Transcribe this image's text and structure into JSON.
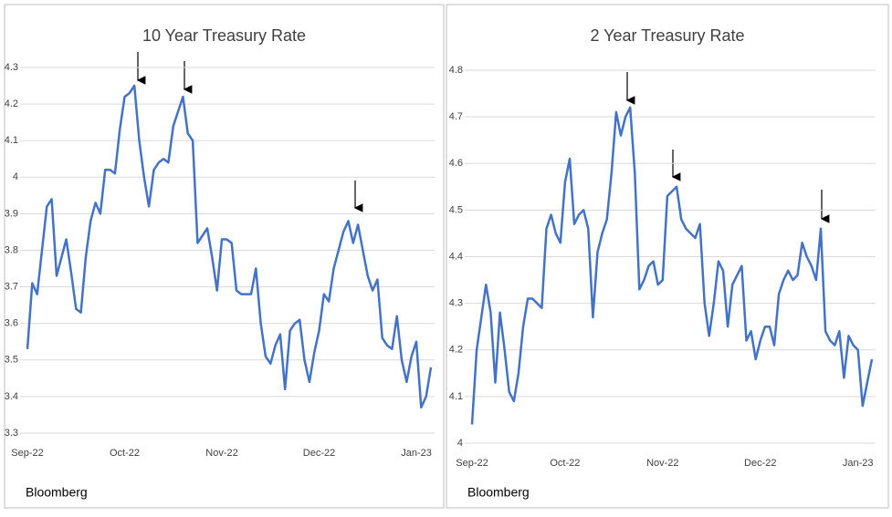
{
  "chart_data": [
    {
      "type": "line",
      "title": "10 Year Treasury Rate",
      "source": "Bloomberg",
      "color": "#4472c4",
      "grid": true,
      "ylim": [
        3.3,
        4.3
      ],
      "yticks": [
        3.3,
        3.4,
        3.5,
        3.6,
        3.7,
        3.8,
        3.9,
        4,
        4.1,
        4.2,
        4.3
      ],
      "categories": [
        "Sep-22",
        null,
        null,
        null,
        null,
        null,
        null,
        null,
        null,
        null,
        null,
        null,
        null,
        null,
        null,
        null,
        null,
        null,
        null,
        null,
        "Oct-22",
        null,
        null,
        null,
        null,
        null,
        null,
        null,
        null,
        null,
        null,
        null,
        null,
        null,
        null,
        null,
        null,
        null,
        null,
        null,
        "Nov-22",
        null,
        null,
        null,
        null,
        null,
        null,
        null,
        null,
        null,
        null,
        null,
        null,
        null,
        null,
        null,
        null,
        null,
        null,
        null,
        "Dec-22",
        null,
        null,
        null,
        null,
        null,
        null,
        null,
        null,
        null,
        null,
        null,
        null,
        null,
        null,
        null,
        null,
        null,
        null,
        null,
        "Jan-23",
        null,
        null,
        null
      ],
      "values": [
        3.53,
        3.71,
        3.68,
        3.8,
        3.92,
        3.94,
        3.73,
        3.78,
        3.83,
        3.74,
        3.64,
        3.63,
        3.78,
        3.88,
        3.93,
        3.9,
        4.02,
        4.02,
        4.01,
        4.13,
        4.22,
        4.23,
        4.25,
        4.1,
        4.0,
        3.92,
        4.02,
        4.04,
        4.05,
        4.04,
        4.14,
        4.18,
        4.22,
        4.12,
        4.1,
        3.82,
        3.84,
        3.86,
        3.78,
        3.69,
        3.83,
        3.83,
        3.82,
        3.69,
        3.68,
        3.68,
        3.68,
        3.75,
        3.6,
        3.51,
        3.49,
        3.54,
        3.57,
        3.42,
        3.58,
        3.6,
        3.61,
        3.5,
        3.44,
        3.52,
        3.58,
        3.68,
        3.66,
        3.75,
        3.8,
        3.85,
        3.88,
        3.82,
        3.87,
        3.8,
        3.73,
        3.69,
        3.72,
        3.56,
        3.54,
        3.53,
        3.62,
        3.5,
        3.44,
        3.51,
        3.55,
        3.37,
        3.4,
        3.48
      ]
    },
    {
      "type": "line",
      "title": "2 Year Treasury Rate",
      "source": "Bloomberg",
      "color": "#4472c4",
      "grid": true,
      "ylim": [
        4,
        4.8
      ],
      "yticks": [
        4,
        4.1,
        4.2,
        4.3,
        4.4,
        4.5,
        4.6,
        4.7,
        4.8
      ],
      "categories": [
        "Sep-22",
        null,
        null,
        null,
        null,
        null,
        null,
        null,
        null,
        null,
        null,
        null,
        null,
        null,
        null,
        null,
        null,
        null,
        null,
        null,
        "Oct-22",
        null,
        null,
        null,
        null,
        null,
        null,
        null,
        null,
        null,
        null,
        null,
        null,
        null,
        null,
        null,
        null,
        null,
        null,
        null,
        null,
        "Nov-22",
        null,
        null,
        null,
        null,
        null,
        null,
        null,
        null,
        null,
        null,
        null,
        null,
        null,
        null,
        null,
        null,
        null,
        null,
        null,
        null,
        "Dec-22",
        null,
        null,
        null,
        null,
        null,
        null,
        null,
        null,
        null,
        null,
        null,
        null,
        null,
        null,
        null,
        null,
        null,
        null,
        null,
        null,
        "Jan-23",
        null,
        null,
        null
      ],
      "values": [
        4.04,
        4.2,
        4.27,
        4.34,
        4.28,
        4.13,
        4.28,
        4.2,
        4.11,
        4.09,
        4.15,
        4.25,
        4.31,
        4.31,
        4.3,
        4.29,
        4.46,
        4.49,
        4.45,
        4.43,
        4.56,
        4.61,
        4.47,
        4.49,
        4.5,
        4.46,
        4.27,
        4.41,
        4.45,
        4.48,
        4.58,
        4.71,
        4.66,
        4.7,
        4.72,
        4.58,
        4.33,
        4.35,
        4.38,
        4.39,
        4.34,
        4.35,
        4.53,
        4.54,
        4.55,
        4.48,
        4.46,
        4.45,
        4.44,
        4.47,
        4.3,
        4.23,
        4.3,
        4.39,
        4.37,
        4.25,
        4.34,
        4.36,
        4.38,
        4.22,
        4.24,
        4.18,
        4.22,
        4.25,
        4.25,
        4.21,
        4.32,
        4.35,
        4.37,
        4.35,
        4.36,
        4.43,
        4.4,
        4.38,
        4.35,
        4.46,
        4.24,
        4.22,
        4.21,
        4.24,
        4.14,
        4.23,
        4.21,
        4.2,
        4.08,
        4.13,
        4.18
      ]
    }
  ]
}
